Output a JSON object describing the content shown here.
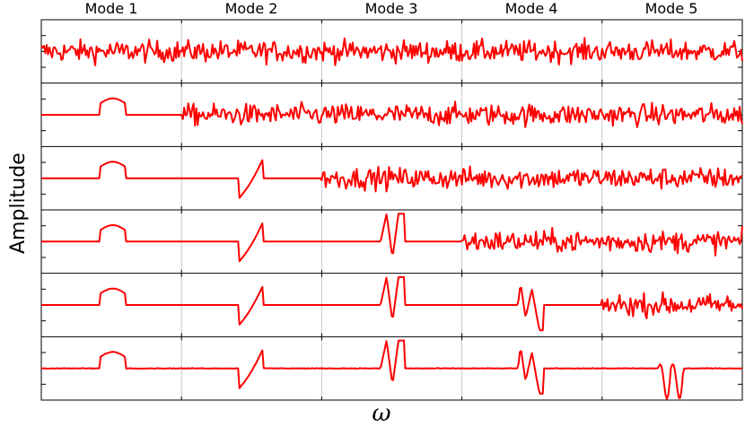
{
  "chart_data": {
    "type": "line",
    "title": "",
    "xlabel": "ω",
    "ylabel": "Amplitude",
    "color": "#ff0000",
    "grid": true,
    "columns": [
      "Mode 1",
      "Mode 2",
      "Mode 3",
      "Mode 4",
      "Mode 5"
    ],
    "rows": 6,
    "rows_description": [
      "row 1: noise across all modes",
      "row 2: mode 1 shape then noise",
      "row 3: modes 1-2 shapes then noise",
      "row 4: modes 1-3 shapes then noise",
      "row 5: modes 1-4 shapes then noise",
      "row 6: modes 1-5 shapes"
    ]
  }
}
